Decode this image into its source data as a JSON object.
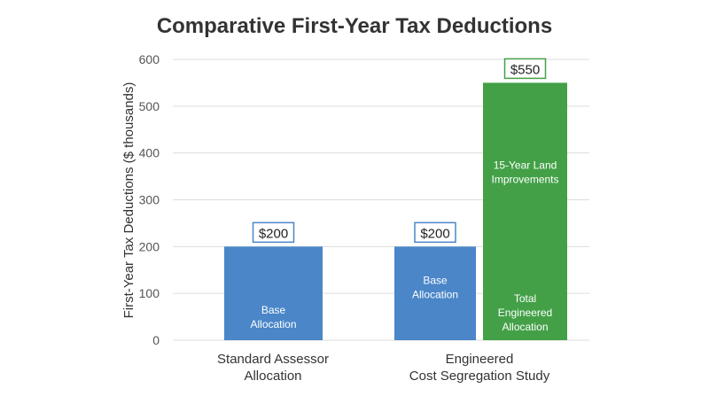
{
  "chart_data": {
    "type": "bar",
    "title": "Comparative First-Year Tax Deductions",
    "ylabel": "First-Year Tax Deductions ($ thousands)",
    "xlabel": "",
    "ylim": [
      0,
      600
    ],
    "yticks": [
      0,
      100,
      200,
      300,
      400,
      500,
      600
    ],
    "grid": true,
    "categories": [
      {
        "lines": [
          "Standard Assessor",
          "Allocation"
        ]
      },
      {
        "lines": [
          "Engineered",
          "Cost Segregation Study"
        ]
      }
    ],
    "bars": [
      {
        "category": 0,
        "value": 200,
        "value_label": "$200",
        "label_lines": [
          "Base",
          "Allocation"
        ],
        "label_position": "bottom",
        "color": "#4a86c8"
      },
      {
        "category": 1,
        "value": 200,
        "value_label": "$200",
        "label_lines": [
          "Base",
          "Allocation"
        ],
        "label_position": "top",
        "color": "#4a86c8"
      },
      {
        "category": 1,
        "value": 550,
        "value_label": "$550",
        "label_lines": [
          "15-Year Land",
          "Improvements"
        ],
        "label_position": "middle",
        "extra_label_lines": [
          "Total",
          "Engineered",
          "Allocation"
        ],
        "color": "#43a047"
      }
    ],
    "colors": {
      "blue": "#4a86c8",
      "green": "#43a047",
      "blue_border": "#4a86c8",
      "green_border": "#43a047"
    }
  }
}
